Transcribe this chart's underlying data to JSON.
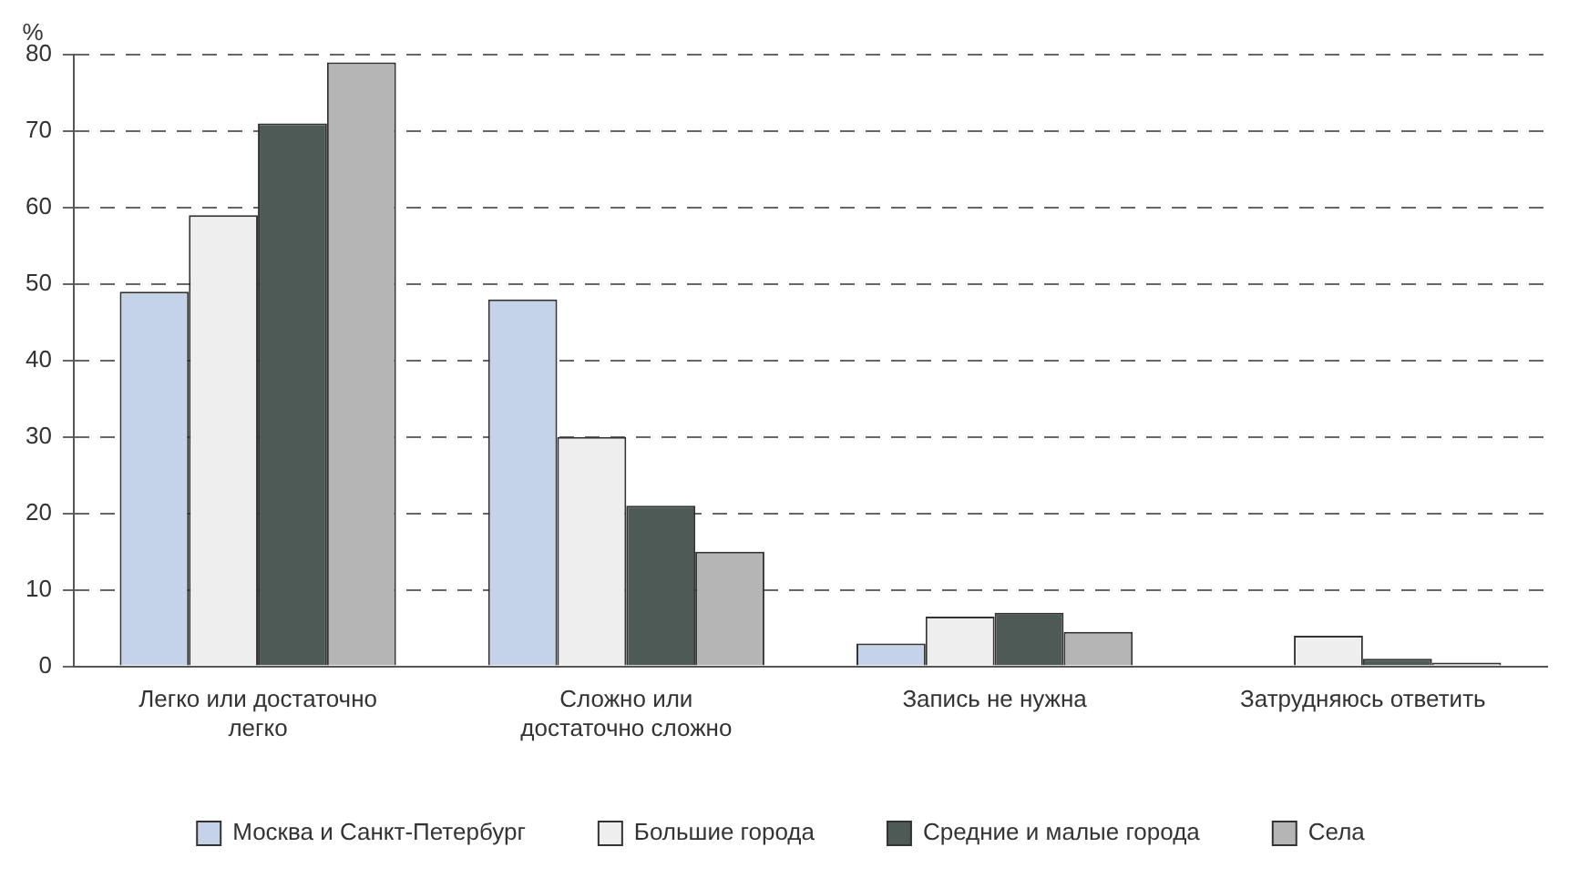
{
  "chart_data": {
    "type": "bar",
    "ylabel": "%",
    "categories": [
      "Легко или достаточно легко",
      "Сложно или достаточно сложно",
      "Запись не нужна",
      "Затрудняюсь ответить"
    ],
    "series": [
      {
        "name": "Москва и Санкт-Петербург",
        "color": "#c5d3e8",
        "values": [
          49,
          48,
          3,
          0
        ]
      },
      {
        "name": "Большие города",
        "color": "#eeeeee",
        "values": [
          59,
          30,
          6.5,
          4
        ]
      },
      {
        "name": "Средние и малые города",
        "color": "#4d5a55",
        "values": [
          71,
          21,
          7,
          1
        ]
      },
      {
        "name": "Села",
        "color": "#b5b5b5",
        "values": [
          79,
          15,
          4.5,
          0.5
        ]
      }
    ],
    "ylim": [
      0,
      80
    ],
    "yticks": [
      0,
      10,
      20,
      30,
      40,
      50,
      60,
      70,
      80
    ],
    "grid": "y",
    "legend": "bottom"
  }
}
